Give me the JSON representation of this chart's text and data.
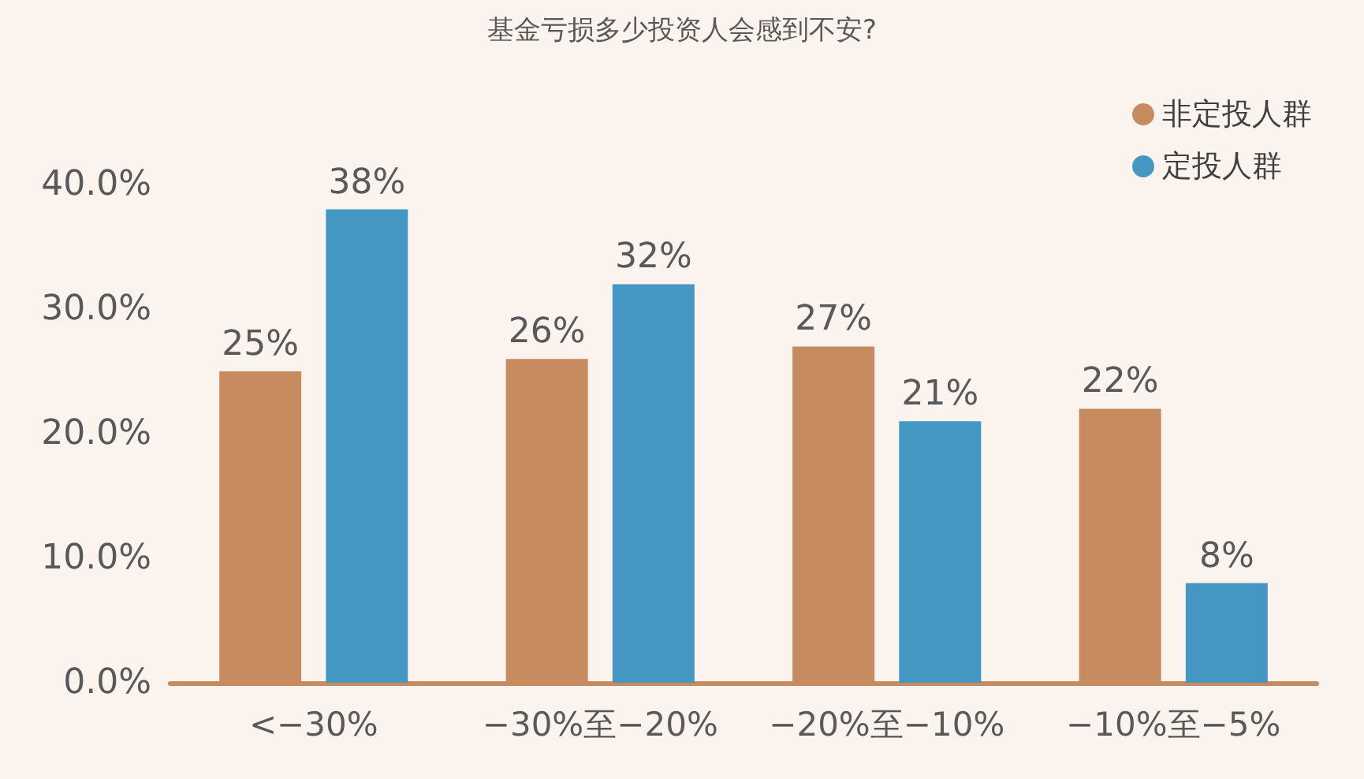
{
  "chart_data": {
    "type": "bar",
    "title": "基金亏损多少投资人会感到不安?",
    "categories": [
      "<−30%",
      "−30%至−20%",
      "−20%至−10%",
      "−10%至−5%"
    ],
    "series": [
      {
        "name": "非定投人群",
        "color": "#c68b5e",
        "values": [
          25,
          26,
          27,
          22
        ],
        "value_labels": [
          "25%",
          "26%",
          "27%",
          "22%"
        ]
      },
      {
        "name": "定投人群",
        "color": "#4497c3",
        "values": [
          38,
          32,
          21,
          8
        ],
        "value_labels": [
          "38%",
          "32%",
          "21%",
          "8%"
        ]
      }
    ],
    "ylim": [
      0,
      40
    ],
    "yticks": [
      {
        "value": 0,
        "label": "0.0%"
      },
      {
        "value": 10,
        "label": "10.0%"
      },
      {
        "value": 20,
        "label": "20.0%"
      },
      {
        "value": 30,
        "label": "30.0%"
      },
      {
        "value": 40,
        "label": "40.0%"
      }
    ],
    "grid": false,
    "legend": "top right",
    "marker": "circle"
  }
}
